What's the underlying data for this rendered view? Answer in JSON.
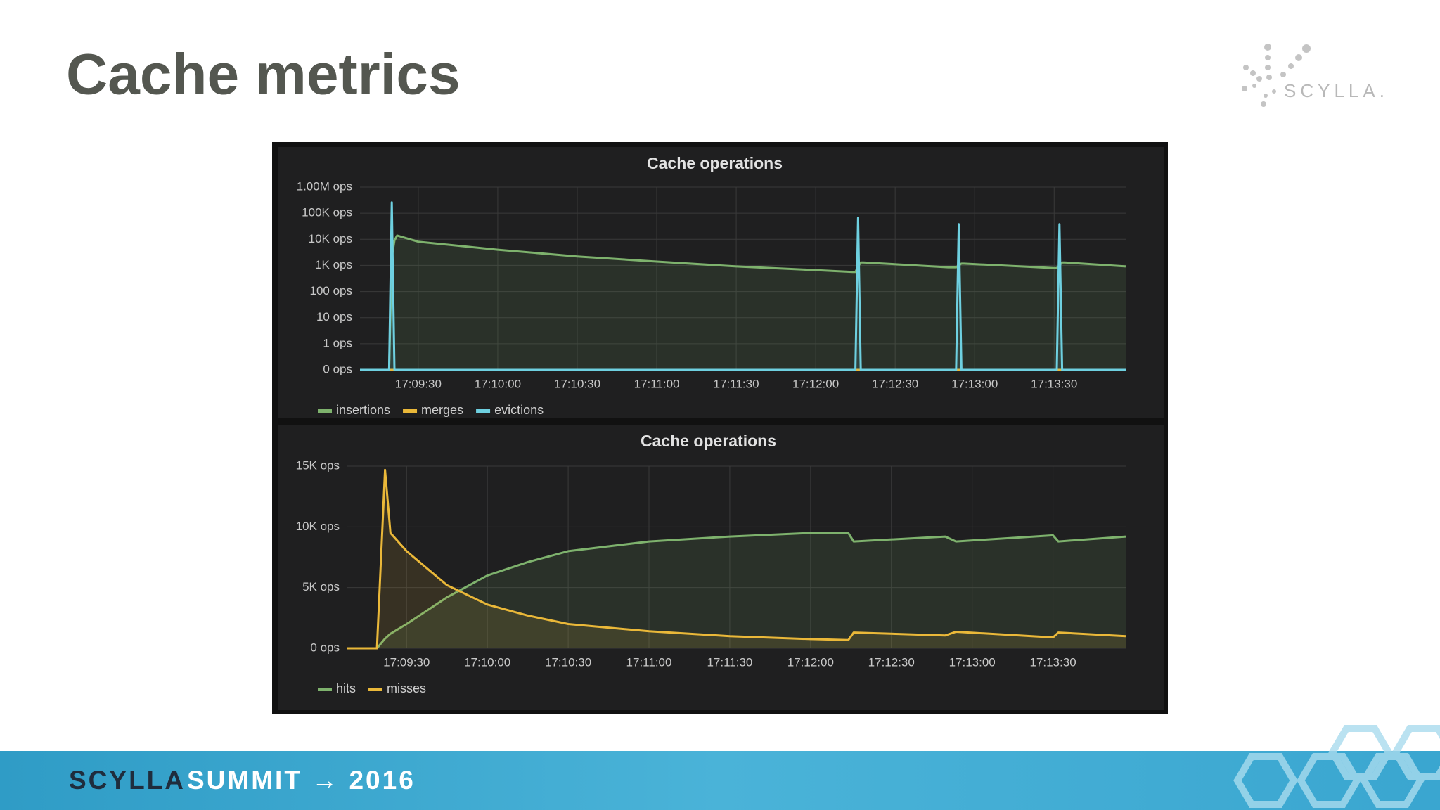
{
  "title": "Cache metrics",
  "logo": "SCYLLA.",
  "footer": {
    "brand": "SCYLLA",
    "event": "SUMMIT → 2016"
  },
  "chart_data": [
    {
      "type": "line",
      "title": "Cache operations",
      "log_scale": true,
      "grid": true,
      "legend": "bottom-left",
      "x": [
        "17:09:08",
        "17:09:18",
        "17:09:19",
        "17:09:20",
        "17:09:21",
        "17:09:22",
        "17:09:30",
        "17:10:00",
        "17:10:30",
        "17:11:00",
        "17:11:30",
        "17:12:00",
        "17:12:14",
        "17:12:15",
        "17:12:16",
        "17:12:17",
        "17:12:18",
        "17:12:50",
        "17:12:53",
        "17:12:54",
        "17:12:55",
        "17:12:56",
        "17:13:30",
        "17:13:31",
        "17:13:32",
        "17:13:33",
        "17:13:34",
        "17:13:57"
      ],
      "xlim": [
        "17:09:08",
        "17:13:57"
      ],
      "xticks": [
        "17:09:30",
        "17:10:00",
        "17:10:30",
        "17:11:00",
        "17:11:30",
        "17:12:00",
        "17:12:30",
        "17:13:00",
        "17:13:30"
      ],
      "ylim": [
        0,
        1000000
      ],
      "yticks": [
        {
          "value": 0,
          "label": "0 ops"
        },
        {
          "value": 1,
          "label": "1 ops"
        },
        {
          "value": 10,
          "label": "10 ops"
        },
        {
          "value": 100,
          "label": "100 ops"
        },
        {
          "value": 1000,
          "label": "1K ops"
        },
        {
          "value": 10000,
          "label": "10K ops"
        },
        {
          "value": 100000,
          "label": "100K ops"
        },
        {
          "value": 1000000,
          "label": "1.00M ops"
        }
      ],
      "series": [
        {
          "name": "insertions",
          "color": "#7eb26d",
          "values": [
            0,
            0,
            0,
            2000,
            9000,
            14000,
            8100,
            4000,
            2200,
            1400,
            910,
            660,
            560,
            560,
            900,
            1300,
            1300,
            850,
            850,
            1000,
            1170,
            1170,
            790,
            790,
            1000,
            1300,
            1300,
            910
          ]
        },
        {
          "name": "merges",
          "color": "#eab839",
          "values": [
            0,
            0,
            0,
            0,
            0,
            0,
            0,
            0,
            0,
            0,
            0,
            0,
            0,
            0,
            0,
            0,
            0,
            0,
            0,
            0,
            0,
            0,
            0,
            0,
            0,
            0,
            0,
            0
          ]
        },
        {
          "name": "evictions",
          "color": "#6ed0e0",
          "values": [
            0,
            0,
            0,
            260000,
            0,
            0,
            0,
            0,
            0,
            0,
            0,
            0,
            0,
            0,
            66000,
            0,
            0,
            0,
            0,
            38000,
            0,
            0,
            0,
            0,
            38000,
            0,
            0,
            0
          ]
        }
      ]
    },
    {
      "type": "line",
      "title": "Cache operations",
      "log_scale": false,
      "grid": true,
      "legend": "bottom-left",
      "x": [
        "17:09:08",
        "17:09:19",
        "17:09:22",
        "17:09:24",
        "17:09:30",
        "17:09:45",
        "17:10:00",
        "17:10:15",
        "17:10:30",
        "17:11:00",
        "17:11:30",
        "17:12:00",
        "17:12:14",
        "17:12:16",
        "17:12:50",
        "17:12:54",
        "17:13:30",
        "17:13:32",
        "17:13:57"
      ],
      "xlim": [
        "17:09:08",
        "17:13:57"
      ],
      "xticks": [
        "17:09:30",
        "17:10:00",
        "17:10:30",
        "17:11:00",
        "17:11:30",
        "17:12:00",
        "17:12:30",
        "17:13:00",
        "17:13:30"
      ],
      "ylim": [
        0,
        15000
      ],
      "yticks": [
        {
          "value": 0,
          "label": "0 ops"
        },
        {
          "value": 5000,
          "label": "5K ops"
        },
        {
          "value": 10000,
          "label": "10K ops"
        },
        {
          "value": 15000,
          "label": "15K ops"
        }
      ],
      "series": [
        {
          "name": "hits",
          "color": "#7eb26d",
          "values": [
            0,
            0,
            800,
            1200,
            2000,
            4200,
            6000,
            7100,
            8000,
            8800,
            9200,
            9500,
            9500,
            8800,
            9200,
            8800,
            9300,
            8800,
            9200
          ]
        },
        {
          "name": "misses",
          "color": "#eab839",
          "values": [
            0,
            0,
            14700,
            9500,
            8000,
            5200,
            3600,
            2700,
            2000,
            1400,
            1000,
            760,
            680,
            1300,
            1060,
            1360,
            900,
            1300,
            1000
          ]
        }
      ]
    }
  ]
}
